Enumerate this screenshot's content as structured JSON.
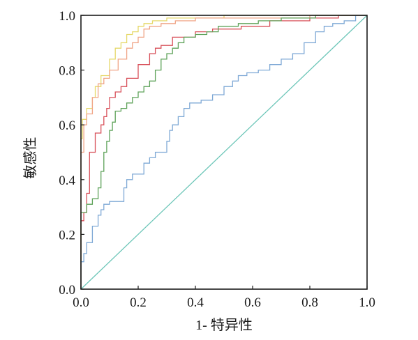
{
  "chart_data": {
    "type": "line",
    "title": "",
    "xlabel": "1- 特异性",
    "ylabel": "敏感性",
    "xlim": [
      0,
      1
    ],
    "ylim": [
      0,
      1
    ],
    "grid": false,
    "legend": "none",
    "xticks": [
      "0.0",
      "0.2",
      "0.4",
      "0.6",
      "0.8",
      "1.0"
    ],
    "yticks": [
      "0.0",
      "0.2",
      "0.4",
      "0.6",
      "0.8",
      "1.0"
    ],
    "series": [
      {
        "color": "#e6d96b",
        "points": [
          [
            0,
            0
          ],
          [
            0,
            0.36
          ],
          [
            0.005,
            0.55
          ],
          [
            0.02,
            0.62
          ],
          [
            0.04,
            0.66
          ],
          [
            0.05,
            0.7
          ],
          [
            0.07,
            0.74
          ],
          [
            0.1,
            0.78
          ],
          [
            0.12,
            0.84
          ],
          [
            0.14,
            0.88
          ],
          [
            0.16,
            0.9
          ],
          [
            0.18,
            0.93
          ],
          [
            0.2,
            0.94
          ],
          [
            0.22,
            0.96
          ],
          [
            0.25,
            0.97
          ],
          [
            0.3,
            0.98
          ],
          [
            0.5,
            0.99
          ],
          [
            0.8,
            1.0
          ],
          [
            1.0,
            1.0
          ]
        ]
      },
      {
        "color": "#f0a587",
        "points": [
          [
            0,
            0
          ],
          [
            0,
            0.3
          ],
          [
            0.01,
            0.5
          ],
          [
            0.02,
            0.6
          ],
          [
            0.04,
            0.64
          ],
          [
            0.06,
            0.7
          ],
          [
            0.08,
            0.75
          ],
          [
            0.1,
            0.77
          ],
          [
            0.13,
            0.8
          ],
          [
            0.16,
            0.84
          ],
          [
            0.18,
            0.88
          ],
          [
            0.2,
            0.9
          ],
          [
            0.22,
            0.92
          ],
          [
            0.24,
            0.95
          ],
          [
            0.28,
            0.96
          ],
          [
            0.33,
            0.97
          ],
          [
            0.4,
            0.98
          ],
          [
            0.6,
            0.99
          ],
          [
            0.8,
            0.99
          ],
          [
            1.0,
            1.0
          ]
        ]
      },
      {
        "color": "#d8505a",
        "points": [
          [
            0,
            0
          ],
          [
            0,
            0.12
          ],
          [
            0.01,
            0.25
          ],
          [
            0.02,
            0.28
          ],
          [
            0.03,
            0.35
          ],
          [
            0.05,
            0.5
          ],
          [
            0.07,
            0.57
          ],
          [
            0.08,
            0.6
          ],
          [
            0.09,
            0.63
          ],
          [
            0.1,
            0.66
          ],
          [
            0.12,
            0.7
          ],
          [
            0.14,
            0.72
          ],
          [
            0.16,
            0.74
          ],
          [
            0.2,
            0.77
          ],
          [
            0.24,
            0.82
          ],
          [
            0.26,
            0.86
          ],
          [
            0.28,
            0.88
          ],
          [
            0.32,
            0.89
          ],
          [
            0.4,
            0.92
          ],
          [
            0.46,
            0.94
          ],
          [
            0.56,
            0.95
          ],
          [
            0.66,
            0.96
          ],
          [
            0.8,
            0.98
          ],
          [
            0.9,
            0.99
          ],
          [
            1.0,
            1.0
          ]
        ]
      },
      {
        "color": "#5fa35a",
        "points": [
          [
            0,
            0
          ],
          [
            0,
            0.14
          ],
          [
            0.02,
            0.28
          ],
          [
            0.04,
            0.31
          ],
          [
            0.06,
            0.33
          ],
          [
            0.07,
            0.37
          ],
          [
            0.08,
            0.43
          ],
          [
            0.09,
            0.5
          ],
          [
            0.1,
            0.54
          ],
          [
            0.11,
            0.58
          ],
          [
            0.12,
            0.61
          ],
          [
            0.14,
            0.65
          ],
          [
            0.16,
            0.66
          ],
          [
            0.18,
            0.68
          ],
          [
            0.2,
            0.7
          ],
          [
            0.22,
            0.72
          ],
          [
            0.24,
            0.74
          ],
          [
            0.26,
            0.76
          ],
          [
            0.28,
            0.8
          ],
          [
            0.3,
            0.84
          ],
          [
            0.32,
            0.86
          ],
          [
            0.34,
            0.88
          ],
          [
            0.36,
            0.9
          ],
          [
            0.4,
            0.92
          ],
          [
            0.44,
            0.93
          ],
          [
            0.48,
            0.94
          ],
          [
            0.55,
            0.96
          ],
          [
            0.62,
            0.97
          ],
          [
            0.7,
            0.98
          ],
          [
            0.82,
            0.99
          ],
          [
            1.0,
            1.0
          ]
        ]
      },
      {
        "color": "#7fa9d6",
        "points": [
          [
            0,
            0
          ],
          [
            0,
            0.05
          ],
          [
            0.01,
            0.1
          ],
          [
            0.02,
            0.13
          ],
          [
            0.04,
            0.17
          ],
          [
            0.06,
            0.23
          ],
          [
            0.07,
            0.27
          ],
          [
            0.08,
            0.29
          ],
          [
            0.1,
            0.31
          ],
          [
            0.12,
            0.32
          ],
          [
            0.15,
            0.32
          ],
          [
            0.16,
            0.37
          ],
          [
            0.18,
            0.4
          ],
          [
            0.22,
            0.42
          ],
          [
            0.24,
            0.46
          ],
          [
            0.26,
            0.48
          ],
          [
            0.3,
            0.5
          ],
          [
            0.31,
            0.54
          ],
          [
            0.32,
            0.58
          ],
          [
            0.34,
            0.6
          ],
          [
            0.36,
            0.63
          ],
          [
            0.38,
            0.66
          ],
          [
            0.42,
            0.68
          ],
          [
            0.46,
            0.69
          ],
          [
            0.5,
            0.71
          ],
          [
            0.53,
            0.74
          ],
          [
            0.55,
            0.76
          ],
          [
            0.58,
            0.78
          ],
          [
            0.62,
            0.79
          ],
          [
            0.66,
            0.8
          ],
          [
            0.7,
            0.82
          ],
          [
            0.74,
            0.84
          ],
          [
            0.78,
            0.86
          ],
          [
            0.82,
            0.9
          ],
          [
            0.85,
            0.94
          ],
          [
            0.88,
            0.96
          ],
          [
            0.92,
            0.97
          ],
          [
            0.96,
            0.98
          ],
          [
            1.0,
            1.0
          ]
        ]
      },
      {
        "color": "#6cc6b8",
        "points": [
          [
            0,
            0
          ],
          [
            1,
            1
          ]
        ]
      }
    ]
  }
}
